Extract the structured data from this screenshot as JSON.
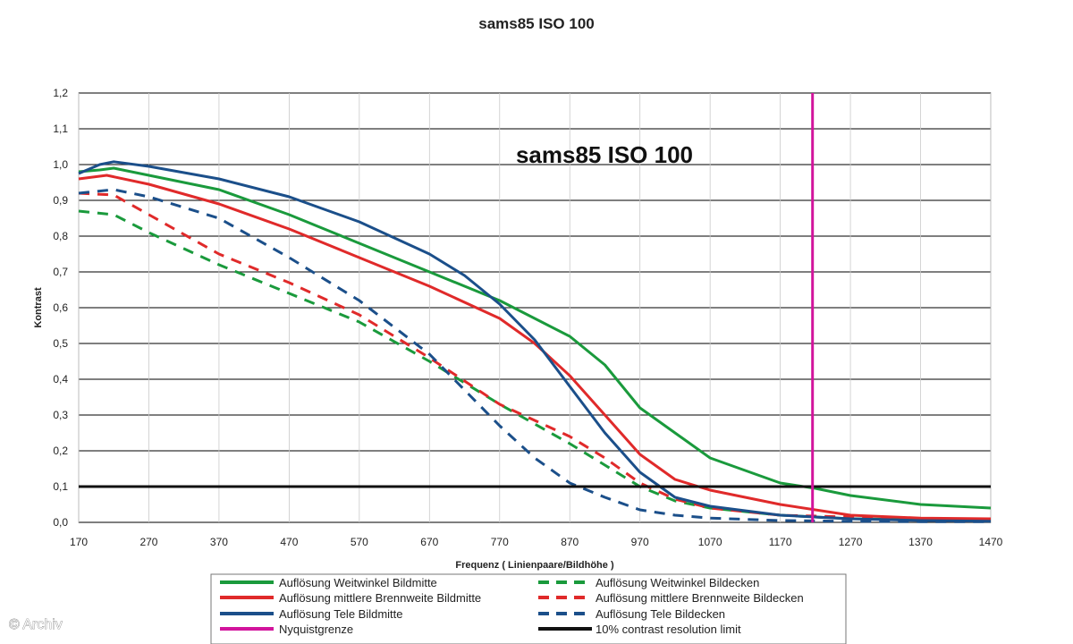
{
  "watermark": "© Archiv",
  "colors": {
    "green": "#1a9a3c",
    "red": "#e02a2a",
    "blue": "#1b4f8a",
    "magenta": "#d2149c",
    "black": "#111111",
    "grid": "#222222"
  },
  "chart_data": {
    "type": "line",
    "title": "sams85 ISO 100",
    "inner_title": "sams85 ISO 100",
    "xlabel": "Frequenz ( Linienpaare/Bildhöhe )",
    "ylabel": "Kontrast",
    "xlim": [
      170,
      1470
    ],
    "ylim": [
      0,
      1.2
    ],
    "xticks": [
      170,
      270,
      370,
      470,
      570,
      670,
      770,
      870,
      970,
      1070,
      1170,
      1270,
      1370,
      1470
    ],
    "yticks": [
      0,
      0.1,
      0.2,
      0.3,
      0.4,
      0.5,
      0.6,
      0.7,
      0.8,
      0.9,
      1.0,
      1.1,
      1.2
    ],
    "ytick_labels": [
      "0,0",
      "0,1",
      "0,2",
      "0,3",
      "0,4",
      "0,5",
      "0,6",
      "0,7",
      "0,8",
      "0,9",
      "1,0",
      "1,1",
      "1,2"
    ],
    "grid": "horizontal",
    "legend_position": "bottom",
    "series": [
      {
        "name": "Auflösung Weitwinkel Bildmitte",
        "color": "#1a9a3c",
        "dash": "solid",
        "points": [
          [
            170,
            0.98
          ],
          [
            200,
            0.985
          ],
          [
            220,
            0.99
          ],
          [
            270,
            0.97
          ],
          [
            370,
            0.93
          ],
          [
            470,
            0.86
          ],
          [
            570,
            0.78
          ],
          [
            670,
            0.7
          ],
          [
            770,
            0.62
          ],
          [
            870,
            0.52
          ],
          [
            920,
            0.44
          ],
          [
            970,
            0.32
          ],
          [
            1070,
            0.18
          ],
          [
            1170,
            0.11
          ],
          [
            1220,
            0.095
          ],
          [
            1270,
            0.075
          ],
          [
            1370,
            0.05
          ],
          [
            1470,
            0.04
          ]
        ]
      },
      {
        "name": "Auflösung Weitwinkel Bildecken",
        "color": "#1a9a3c",
        "dash": "dashed",
        "points": [
          [
            170,
            0.87
          ],
          [
            220,
            0.86
          ],
          [
            270,
            0.81
          ],
          [
            370,
            0.72
          ],
          [
            470,
            0.64
          ],
          [
            570,
            0.56
          ],
          [
            670,
            0.45
          ],
          [
            770,
            0.33
          ],
          [
            870,
            0.22
          ],
          [
            920,
            0.16
          ],
          [
            970,
            0.1
          ],
          [
            1020,
            0.06
          ],
          [
            1070,
            0.04
          ],
          [
            1170,
            0.02
          ],
          [
            1270,
            0.01
          ],
          [
            1370,
            0.008
          ],
          [
            1470,
            0.005
          ]
        ]
      },
      {
        "name": "Auflösung mittlere Brennweite Bildmitte",
        "color": "#e02a2a",
        "dash": "solid",
        "points": [
          [
            170,
            0.96
          ],
          [
            210,
            0.97
          ],
          [
            270,
            0.945
          ],
          [
            370,
            0.89
          ],
          [
            470,
            0.82
          ],
          [
            570,
            0.74
          ],
          [
            670,
            0.66
          ],
          [
            770,
            0.57
          ],
          [
            820,
            0.5
          ],
          [
            870,
            0.41
          ],
          [
            920,
            0.3
          ],
          [
            970,
            0.19
          ],
          [
            1020,
            0.12
          ],
          [
            1070,
            0.09
          ],
          [
            1170,
            0.05
          ],
          [
            1270,
            0.02
          ],
          [
            1370,
            0.012
          ],
          [
            1470,
            0.01
          ]
        ]
      },
      {
        "name": "Auflösung mittlere Brennweite Bildecken",
        "color": "#e02a2a",
        "dash": "dashed",
        "points": [
          [
            170,
            0.92
          ],
          [
            220,
            0.915
          ],
          [
            270,
            0.86
          ],
          [
            370,
            0.75
          ],
          [
            470,
            0.67
          ],
          [
            570,
            0.58
          ],
          [
            670,
            0.46
          ],
          [
            770,
            0.33
          ],
          [
            870,
            0.24
          ],
          [
            920,
            0.18
          ],
          [
            970,
            0.11
          ],
          [
            1020,
            0.065
          ],
          [
            1070,
            0.04
          ],
          [
            1170,
            0.02
          ],
          [
            1270,
            0.015
          ],
          [
            1370,
            0.01
          ],
          [
            1470,
            0.008
          ]
        ]
      },
      {
        "name": "Auflösung Tele Bildmitte",
        "color": "#1b4f8a",
        "dash": "solid",
        "points": [
          [
            170,
            0.975
          ],
          [
            200,
            1.0
          ],
          [
            220,
            1.008
          ],
          [
            270,
            0.995
          ],
          [
            370,
            0.96
          ],
          [
            470,
            0.91
          ],
          [
            570,
            0.84
          ],
          [
            670,
            0.75
          ],
          [
            720,
            0.69
          ],
          [
            770,
            0.61
          ],
          [
            820,
            0.51
          ],
          [
            870,
            0.38
          ],
          [
            920,
            0.25
          ],
          [
            970,
            0.14
          ],
          [
            1020,
            0.07
          ],
          [
            1070,
            0.045
          ],
          [
            1170,
            0.02
          ],
          [
            1270,
            0.01
          ],
          [
            1370,
            0.005
          ],
          [
            1470,
            0.003
          ]
        ]
      },
      {
        "name": "Auflösung Tele Bildecken",
        "color": "#1b4f8a",
        "dash": "dashed",
        "points": [
          [
            170,
            0.92
          ],
          [
            220,
            0.93
          ],
          [
            270,
            0.91
          ],
          [
            370,
            0.85
          ],
          [
            470,
            0.74
          ],
          [
            570,
            0.62
          ],
          [
            670,
            0.47
          ],
          [
            720,
            0.37
          ],
          [
            770,
            0.27
          ],
          [
            820,
            0.18
          ],
          [
            870,
            0.11
          ],
          [
            920,
            0.07
          ],
          [
            970,
            0.035
          ],
          [
            1020,
            0.02
          ],
          [
            1070,
            0.012
          ],
          [
            1170,
            0.005
          ],
          [
            1270,
            0.003
          ],
          [
            1370,
            0.002
          ],
          [
            1470,
            0.002
          ]
        ]
      },
      {
        "name": "Nyquistgrenze",
        "color": "#d2149c",
        "dash": "solid",
        "points": [
          [
            1216,
            0
          ],
          [
            1216,
            1.2
          ]
        ]
      },
      {
        "name": "10% contrast resolution limit",
        "color": "#111111",
        "dash": "solid",
        "points": [
          [
            170,
            0.1
          ],
          [
            1470,
            0.1
          ]
        ]
      }
    ]
  }
}
